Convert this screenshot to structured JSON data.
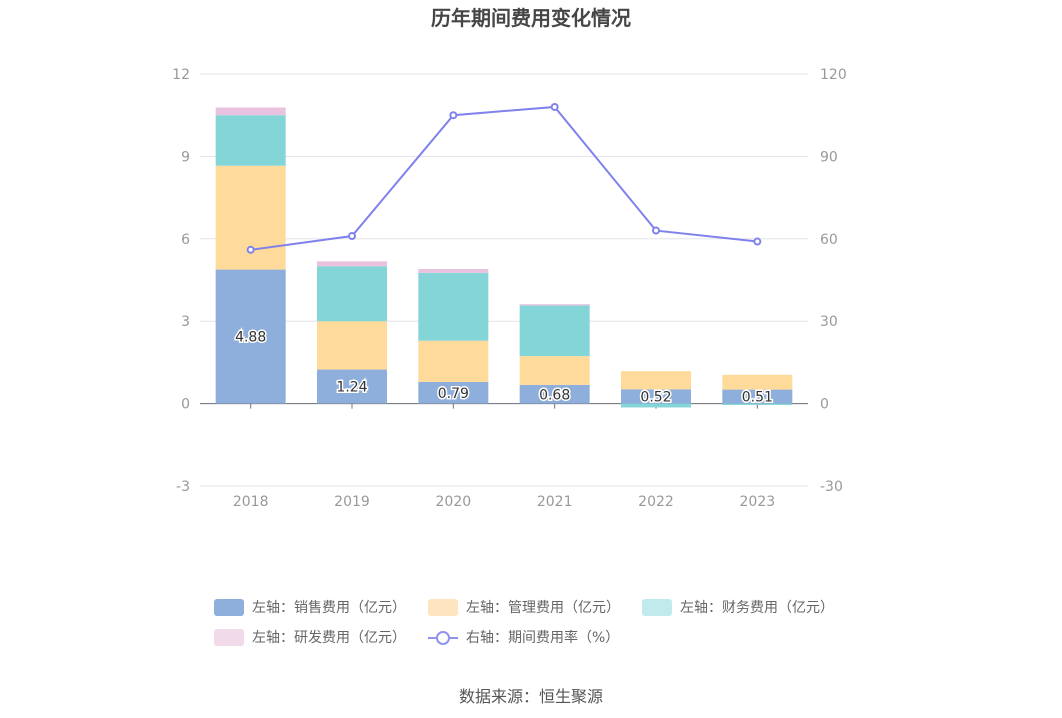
{
  "chart_data": {
    "type": "bar",
    "title": "历年期间费用变化情况",
    "categories": [
      "2018",
      "2019",
      "2020",
      "2021",
      "2022",
      "2023"
    ],
    "y_left": {
      "ylim": [
        -3,
        12
      ],
      "ticks": [
        "-3",
        "0",
        "3",
        "6",
        "9",
        "12"
      ]
    },
    "y_right": {
      "ylim": [
        -30,
        120
      ],
      "ticks": [
        "-30",
        "0",
        "30",
        "60",
        "90",
        "120"
      ]
    },
    "series": [
      {
        "name": "左轴：销售费用（亿元）",
        "axis": "left",
        "stack": "fee",
        "color": "#8eaedb",
        "values": [
          4.88,
          1.24,
          0.79,
          0.68,
          0.52,
          0.51
        ],
        "labels": [
          "4.88",
          "1.24",
          "0.79",
          "0.68",
          "0.52",
          "0.51"
        ]
      },
      {
        "name": "左轴：管理费用（亿元）",
        "axis": "left",
        "stack": "fee",
        "color": "#fedb9b",
        "values": [
          3.78,
          1.76,
          1.5,
          1.05,
          0.66,
          0.54
        ]
      },
      {
        "name": "左轴：财务费用（亿元）",
        "axis": "left",
        "stack": "fee",
        "color": "#84d5d8",
        "values": [
          1.84,
          2.0,
          2.47,
          1.84,
          -0.14,
          -0.05
        ]
      },
      {
        "name": "左轴：研发费用（亿元）",
        "axis": "left",
        "stack": "fee",
        "color": "#e8c2de",
        "values": [
          0.28,
          0.18,
          0.14,
          0.05,
          0.0,
          0.0
        ]
      },
      {
        "name": "右轴：期间费用率（%）",
        "axis": "right",
        "type": "line",
        "color": "#8082ec",
        "values": [
          56.0,
          61.0,
          105.0,
          108.0,
          63.0,
          59.0
        ]
      }
    ],
    "legend_position": "bottom",
    "grid": true
  },
  "legend": {
    "row1": [
      {
        "label": "左轴：销售费用（亿元）",
        "color": "#8eaedb"
      },
      {
        "label": "左轴：管理费用（亿元）",
        "color": "#fee5c0"
      },
      {
        "label": "左轴：财务费用（亿元）",
        "color": "#c1eaec"
      }
    ],
    "row2": [
      {
        "label": "左轴：研发费用（亿元）",
        "color": "#f1dbea"
      },
      {
        "label": "右轴：期间费用率（%）",
        "color": "#8f93ee"
      }
    ]
  },
  "source": "数据来源：恒生聚源"
}
